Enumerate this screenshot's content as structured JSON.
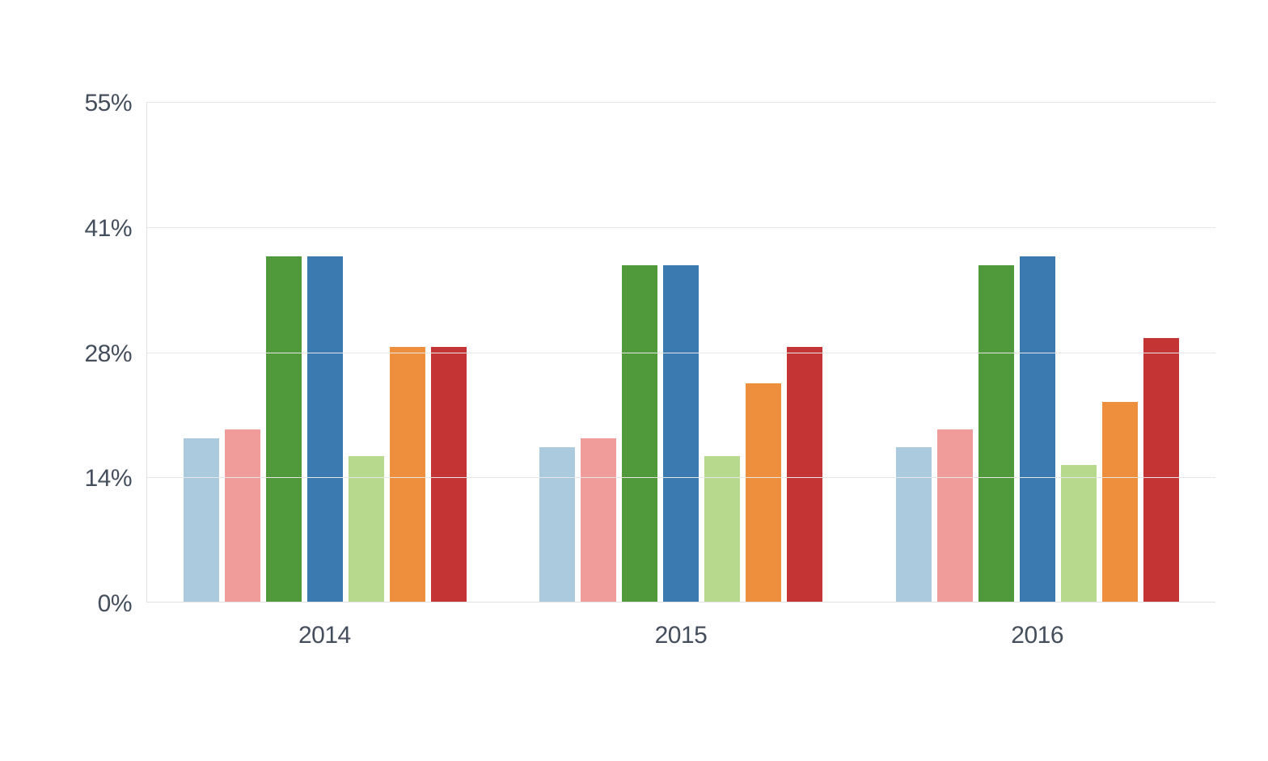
{
  "page": {
    "background_color": "#ffffff",
    "text_color": "#454e5d",
    "gridline_color": "#e6e6e6",
    "axis_line_color": "#e0e0e0"
  },
  "chart_data": {
    "type": "bar",
    "title": "",
    "categories": [
      "2014",
      "2015",
      "2016"
    ],
    "series": [
      {
        "name": "light-blue",
        "color": "#abcade",
        "values": [
          18,
          17,
          17
        ]
      },
      {
        "name": "pink",
        "color": "#f09c9a",
        "values": [
          19,
          18,
          19
        ]
      },
      {
        "name": "green",
        "color": "#519a3c",
        "values": [
          38,
          37,
          37
        ]
      },
      {
        "name": "blue",
        "color": "#3b79b1",
        "values": [
          38,
          37,
          38
        ]
      },
      {
        "name": "light-green",
        "color": "#b7d98d",
        "values": [
          16,
          16,
          15
        ]
      },
      {
        "name": "orange",
        "color": "#ee8f3e",
        "values": [
          28,
          24,
          22
        ]
      },
      {
        "name": "red",
        "color": "#c43435",
        "values": [
          28,
          28,
          29
        ]
      }
    ],
    "y_axis": {
      "unit": "%",
      "min": 0,
      "max": 55,
      "ticks": [
        {
          "label": "0%",
          "value": 0
        },
        {
          "label": "14%",
          "value": 13.75
        },
        {
          "label": "28%",
          "value": 27.5
        },
        {
          "label": "41%",
          "value": 41.25
        },
        {
          "label": "55%",
          "value": 55
        }
      ]
    },
    "x_axis": {
      "labels": [
        "2014",
        "2015",
        "2016"
      ]
    },
    "legend": "none",
    "grid": "horizontal"
  }
}
